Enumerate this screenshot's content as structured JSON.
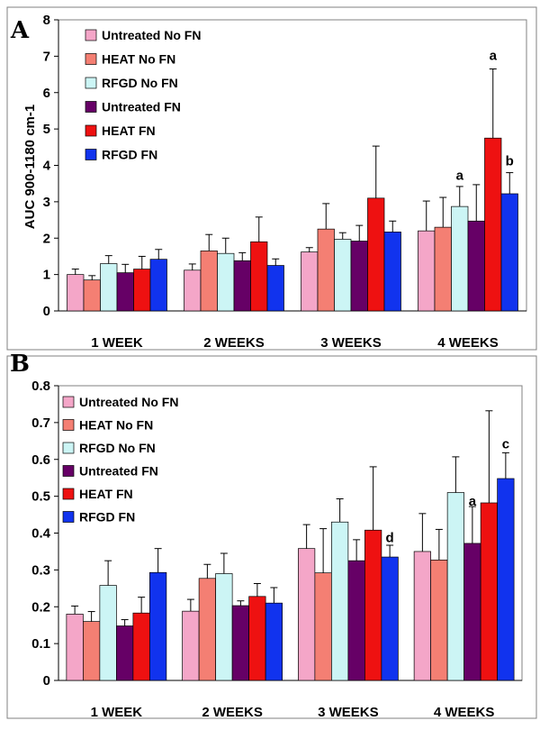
{
  "chart_data": [
    {
      "panel": "A",
      "type": "bar",
      "title": "",
      "xlabel": "",
      "ylabel": "AUC 900-1180 cm-1",
      "ylim": [
        0,
        8
      ],
      "yticks": [
        "0",
        "1",
        "2",
        "3",
        "4",
        "5",
        "6",
        "7",
        "8"
      ],
      "grid": false,
      "legend_position": "top-left",
      "categories": [
        "1 WEEK",
        "2 WEEKS",
        "3 WEEKS",
        "4 WEEKS"
      ],
      "series": [
        {
          "name": "Untreated No FN",
          "color": "#f4a6c8",
          "values": [
            1.0,
            1.12,
            1.62,
            2.2
          ],
          "errors": [
            0.15,
            0.17,
            0.12,
            0.82
          ]
        },
        {
          "name": "HEAT No FN",
          "color": "#f47f73",
          "values": [
            0.85,
            1.65,
            2.25,
            2.3
          ],
          "errors": [
            0.12,
            0.45,
            0.7,
            0.82
          ]
        },
        {
          "name": "RFGD No FN",
          "color": "#ccf5f5",
          "values": [
            1.3,
            1.58,
            1.97,
            2.87
          ],
          "errors": [
            0.22,
            0.42,
            0.18,
            0.55
          ]
        },
        {
          "name": "Untreated FN",
          "color": "#660066",
          "values": [
            1.05,
            1.38,
            1.92,
            2.47
          ],
          "errors": [
            0.23,
            0.22,
            0.43,
            1.0
          ]
        },
        {
          "name": "HEAT FN",
          "color": "#ee1111",
          "values": [
            1.15,
            1.9,
            3.1,
            4.75
          ],
          "errors": [
            0.35,
            0.68,
            1.43,
            1.9
          ]
        },
        {
          "name": "RFGD FN",
          "color": "#1133ee",
          "values": [
            1.42,
            1.25,
            2.17,
            3.22
          ],
          "errors": [
            0.27,
            0.18,
            0.3,
            0.58
          ]
        }
      ],
      "annotations": [
        {
          "text": "a",
          "category": "4 WEEKS",
          "series": "RFGD No FN",
          "y": 3.6
        },
        {
          "text": "a",
          "category": "4 WEEKS",
          "series": "HEAT FN",
          "y": 6.9
        },
        {
          "text": "b",
          "category": "4 WEEKS",
          "series": "RFGD FN",
          "y": 4.0
        }
      ]
    },
    {
      "panel": "B",
      "type": "bar",
      "title": "",
      "xlabel": "",
      "ylabel": "",
      "ylim": [
        0,
        0.8
      ],
      "yticks": [
        "0",
        "0.1",
        "0.2",
        "0.3",
        "0.4",
        "0.5",
        "0.6",
        "0.7",
        "0.8"
      ],
      "grid": false,
      "legend_position": "top-left",
      "categories": [
        "1 WEEK",
        "2 WEEKS",
        "3 WEEKS",
        "4 WEEKS"
      ],
      "series": [
        {
          "name": "Untreated No FN",
          "color": "#f4a6c8",
          "values": [
            0.18,
            0.188,
            0.358,
            0.35
          ],
          "errors": [
            0.022,
            0.032,
            0.065,
            0.103
          ]
        },
        {
          "name": "HEAT No FN",
          "color": "#f47f73",
          "values": [
            0.16,
            0.277,
            0.292,
            0.327
          ],
          "errors": [
            0.027,
            0.038,
            0.12,
            0.083
          ]
        },
        {
          "name": "RFGD No FN",
          "color": "#ccf5f5",
          "values": [
            0.258,
            0.29,
            0.43,
            0.51
          ],
          "errors": [
            0.067,
            0.055,
            0.063,
            0.097
          ]
        },
        {
          "name": "Untreated FN",
          "color": "#660066",
          "values": [
            0.148,
            0.203,
            0.325,
            0.372
          ],
          "errors": [
            0.017,
            0.013,
            0.057,
            0.1
          ]
        },
        {
          "name": "HEAT FN",
          "color": "#ee1111",
          "values": [
            0.183,
            0.228,
            0.408,
            0.482
          ],
          "errors": [
            0.043,
            0.035,
            0.172,
            0.25
          ]
        },
        {
          "name": "RFGD FN",
          "color": "#1133ee",
          "values": [
            0.293,
            0.21,
            0.335,
            0.548
          ],
          "errors": [
            0.065,
            0.042,
            0.032,
            0.07
          ]
        }
      ],
      "annotations": [
        {
          "text": "d",
          "category": "3 WEEKS",
          "series": "RFGD FN",
          "y": 0.375
        },
        {
          "text": "a",
          "category": "4 WEEKS",
          "series": "Untreated FN",
          "y": 0.475
        },
        {
          "text": "c",
          "category": "4 WEEKS",
          "series": "RFGD FN",
          "y": 0.63
        }
      ]
    }
  ]
}
